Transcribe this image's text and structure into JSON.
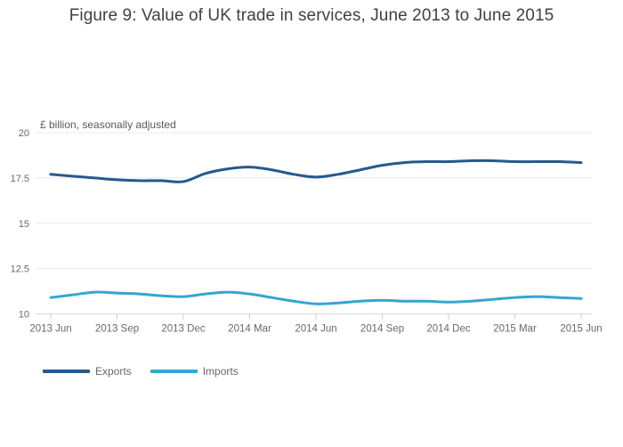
{
  "title": "Figure 9: Value of UK trade in services, June 2013 to June 2015",
  "chart_data": {
    "type": "line",
    "title": "Figure 9: Value of UK trade in services, June 2013 to June 2015",
    "unit_label": "£ billion, seasonally adjusted",
    "x": [
      "2013 Jun",
      "2013 Jul",
      "2013 Aug",
      "2013 Sep",
      "2013 Oct",
      "2013 Nov",
      "2013 Dec",
      "2014 Jan",
      "2014 Feb",
      "2014 Mar",
      "2014 Apr",
      "2014 May",
      "2014 Jun",
      "2014 Jul",
      "2014 Aug",
      "2014 Sep",
      "2014 Oct",
      "2014 Nov",
      "2014 Dec",
      "2015 Jan",
      "2015 Feb",
      "2015 Mar",
      "2015 Apr",
      "2015 May",
      "2015 Jun"
    ],
    "x_tick_labels": [
      "2013 Jun",
      "2013 Sep",
      "2013 Dec",
      "2014 Mar",
      "2014 Jun",
      "2014 Sep",
      "2014 Dec",
      "2015 Mar",
      "2015 Jun"
    ],
    "y_ticks": [
      10,
      12.5,
      15,
      17.5,
      20
    ],
    "ylim": [
      10,
      20
    ],
    "grid": true,
    "legend_position": "bottom-left",
    "series": [
      {
        "name": "Exports",
        "color": "#25598f",
        "values": [
          17.7,
          17.6,
          17.5,
          17.4,
          17.35,
          17.35,
          17.3,
          17.75,
          18.0,
          18.1,
          17.95,
          17.7,
          17.55,
          17.7,
          17.95,
          18.2,
          18.35,
          18.4,
          18.4,
          18.45,
          18.45,
          18.4,
          18.4,
          18.4,
          18.35
        ]
      },
      {
        "name": "Imports",
        "color": "#33a6d3",
        "values": [
          10.9,
          11.05,
          11.2,
          11.15,
          11.1,
          11.0,
          10.95,
          11.1,
          11.2,
          11.1,
          10.9,
          10.7,
          10.55,
          10.6,
          10.7,
          10.75,
          10.7,
          10.7,
          10.65,
          10.7,
          10.8,
          10.9,
          10.95,
          10.9,
          10.85
        ]
      }
    ]
  },
  "colors": {
    "background": "#ffffff",
    "grid": "#e8e8e8",
    "axis_line": "#d9d9d9",
    "tick_mark": "#c5cedb",
    "tick_text": "#68686f",
    "title_text": "#414141",
    "unit_text": "#595959",
    "exports": "#25598f",
    "imports": "#33a6d3"
  }
}
